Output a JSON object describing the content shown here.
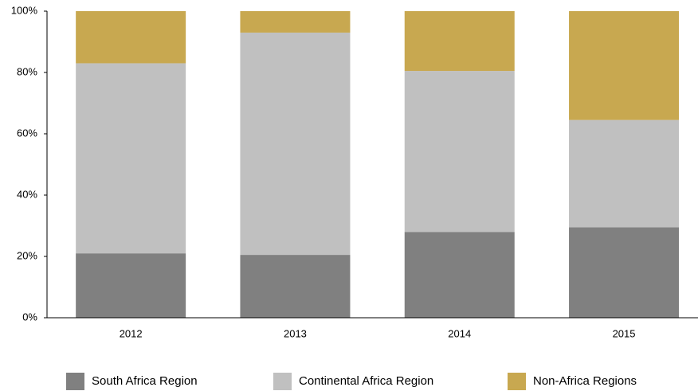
{
  "chart_data": {
    "type": "stacked_bar",
    "categories": [
      "2012",
      "2013",
      "2014",
      "2015"
    ],
    "series": [
      {
        "name": "South Africa Region",
        "color": "#808080",
        "values": [
          21,
          20.5,
          28,
          29.5
        ]
      },
      {
        "name": "Continental Africa Region",
        "color": "#c0c0c0",
        "values": [
          62,
          72.5,
          52.5,
          35
        ]
      },
      {
        "name": "Non-Africa Regions",
        "color": "#c8a850",
        "values": [
          17,
          7,
          19.5,
          35.5
        ]
      }
    ],
    "ylim": [
      0,
      100
    ],
    "yticks": [
      {
        "value": 0,
        "label": "0%"
      },
      {
        "value": 20,
        "label": "20%"
      },
      {
        "value": 40,
        "label": "40%"
      },
      {
        "value": 60,
        "label": "60%"
      },
      {
        "value": 80,
        "label": "80%"
      },
      {
        "value": 100,
        "label": "100%"
      }
    ],
    "legend": "bottom"
  }
}
